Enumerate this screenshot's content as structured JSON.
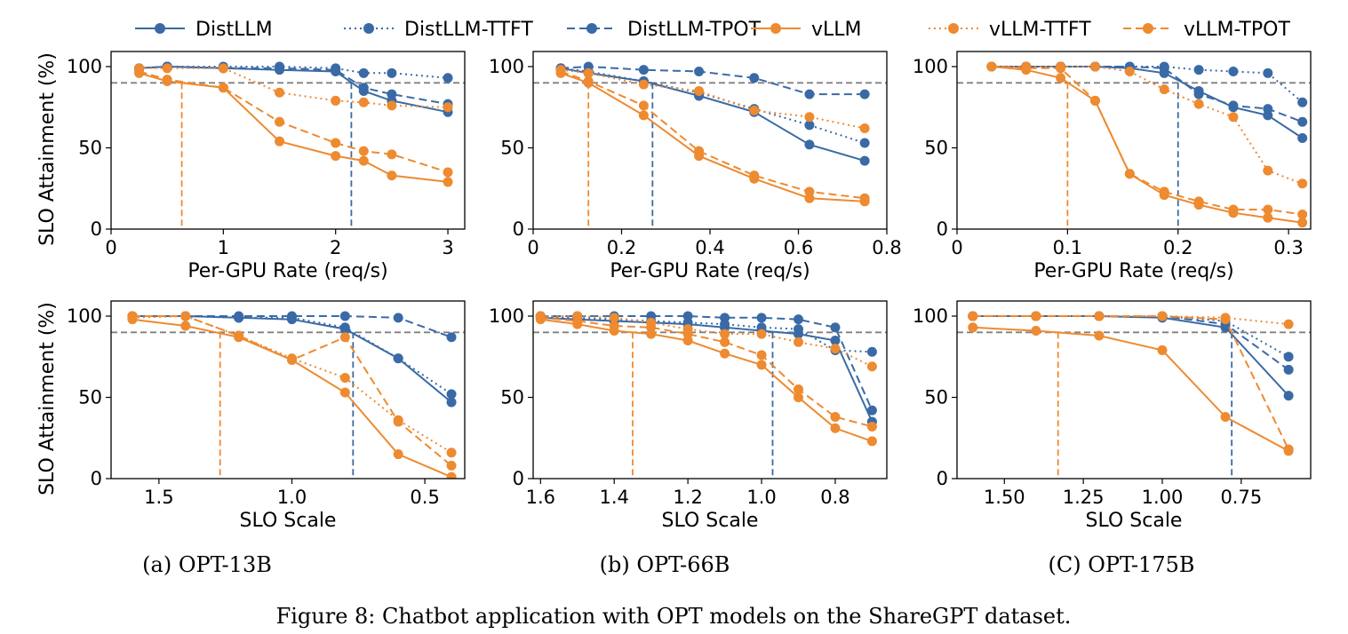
{
  "caption": "Figure 8: Chatbot application with OPT models on the ShareGPT dataset.",
  "colors": {
    "distllm": "#3a6aa6",
    "vllm": "#ee8a30",
    "threshold": "#808080"
  },
  "legend": [
    "DistLLM",
    "DistLLM-TTFT",
    "DistLLM-TPOT",
    "vLLM",
    "vLLM-TTFT",
    "vLLM-TPOT"
  ],
  "shared_ylabel": "SLO Attainment (%)",
  "chart_data": [
    {
      "type": "line",
      "row": 0,
      "col": 0,
      "xlabel": "Per-GPU Rate (req/s)",
      "ylabel": "SLO Attainment (%)",
      "xlim": [
        0,
        3.15
      ],
      "ylim": [
        0,
        100
      ],
      "xreverse": false,
      "xticks": [
        0,
        1,
        2,
        3
      ],
      "xticklabels": [
        "0",
        "1",
        "2",
        "3"
      ],
      "yticks": [
        0,
        50,
        100
      ],
      "yticklabels": [
        "0",
        "50",
        "100"
      ],
      "threshold_y": 90,
      "x": [
        0.25,
        0.5,
        1.0,
        1.5,
        2.0,
        2.25,
        2.5,
        3.0
      ],
      "series": [
        {
          "name": "DistLLM",
          "values": [
            99,
            100,
            99,
            98,
            97,
            85,
            79,
            72
          ]
        },
        {
          "name": "DistLLM-TTFT",
          "values": [
            99,
            100,
            100,
            100,
            99,
            96,
            96,
            93
          ]
        },
        {
          "name": "DistLLM-TPOT",
          "values": [
            99,
            100,
            99,
            99,
            98,
            87,
            83,
            77
          ]
        },
        {
          "name": "vLLM",
          "values": [
            96,
            91,
            87,
            54,
            45,
            42,
            33,
            29
          ]
        },
        {
          "name": "vLLM-TTFT",
          "values": [
            99,
            99,
            99,
            84,
            79,
            78,
            76,
            75
          ]
        },
        {
          "name": "vLLM-TPOT",
          "values": [
            97,
            92,
            87,
            66,
            53,
            48,
            46,
            35
          ]
        }
      ],
      "vlines": [
        {
          "x": 0.63,
          "color": "vllm"
        },
        {
          "x": 2.14,
          "color": "distllm"
        }
      ]
    },
    {
      "type": "line",
      "row": 0,
      "col": 1,
      "xlabel": "Per-GPU Rate (req/s)",
      "ylabel": "",
      "xlim": [
        0,
        0.8
      ],
      "ylim": [
        0,
        100
      ],
      "xreverse": false,
      "xticks": [
        0,
        0.2,
        0.4,
        0.6,
        0.8
      ],
      "xticklabels": [
        "0",
        "0.2",
        "0.4",
        "0.6",
        "0.8"
      ],
      "yticks": [
        0,
        50,
        100
      ],
      "yticklabels": [
        "0",
        "50",
        "100"
      ],
      "threshold_y": 90,
      "x": [
        0.0625,
        0.125,
        0.25,
        0.375,
        0.5,
        0.625,
        0.75
      ],
      "series": [
        {
          "name": "DistLLM",
          "values": [
            99,
            96,
            91,
            82,
            72,
            52,
            42
          ]
        },
        {
          "name": "DistLLM-TTFT",
          "values": [
            99,
            97,
            91,
            84,
            74,
            64,
            53
          ]
        },
        {
          "name": "DistLLM-TPOT",
          "values": [
            99,
            100,
            98,
            97,
            93,
            83,
            83
          ]
        },
        {
          "name": "vLLM",
          "values": [
            96,
            90,
            70,
            45,
            31,
            19,
            17
          ]
        },
        {
          "name": "vLLM-TTFT",
          "values": [
            98,
            96,
            89,
            85,
            73,
            69,
            62
          ]
        },
        {
          "name": "vLLM-TPOT",
          "values": [
            97,
            91,
            76,
            48,
            33,
            23,
            19
          ]
        }
      ],
      "vlines": [
        {
          "x": 0.125,
          "color": "vllm"
        },
        {
          "x": 0.27,
          "color": "distllm"
        }
      ]
    },
    {
      "type": "line",
      "row": 0,
      "col": 2,
      "xlabel": "Per-GPU Rate (req/s)",
      "ylabel": "",
      "xlim": [
        0,
        0.32
      ],
      "ylim": [
        0,
        100
      ],
      "xreverse": false,
      "xticks": [
        0,
        0.1,
        0.2,
        0.3
      ],
      "xticklabels": [
        "0",
        "0.1",
        "0.2",
        "0.3"
      ],
      "yticks": [
        0,
        50,
        100
      ],
      "yticklabels": [
        "0",
        "50",
        "100"
      ],
      "threshold_y": 90,
      "x": [
        0.03125,
        0.0625,
        0.09375,
        0.125,
        0.15625,
        0.1875,
        0.21875,
        0.25,
        0.28125,
        0.3125
      ],
      "series": [
        {
          "name": "DistLLM",
          "values": [
            100,
            100,
            100,
            100,
            99,
            96,
            85,
            75,
            70,
            56
          ]
        },
        {
          "name": "DistLLM-TTFT",
          "values": [
            100,
            100,
            100,
            100,
            100,
            100,
            98,
            97,
            96,
            78
          ]
        },
        {
          "name": "DistLLM-TPOT",
          "values": [
            100,
            100,
            100,
            100,
            100,
            99,
            83,
            76,
            74,
            66
          ]
        },
        {
          "name": "vLLM",
          "values": [
            100,
            98,
            93,
            79,
            34,
            21,
            15,
            10,
            7,
            4
          ]
        },
        {
          "name": "vLLM-TTFT",
          "values": [
            100,
            100,
            100,
            100,
            97,
            86,
            77,
            69,
            36,
            28
          ]
        },
        {
          "name": "vLLM-TPOT",
          "values": [
            100,
            99,
            99,
            79,
            34,
            23,
            17,
            12,
            12,
            9
          ]
        }
      ],
      "vlines": [
        {
          "x": 0.1,
          "color": "vllm"
        },
        {
          "x": 0.2,
          "color": "distllm"
        }
      ]
    },
    {
      "type": "line",
      "row": 1,
      "col": 0,
      "xlabel": "SLO Scale",
      "ylabel": "",
      "xlim": [
        1.68,
        0.35
      ],
      "ylim": [
        0,
        100
      ],
      "xreverse": true,
      "xticks": [
        1.5,
        1.0,
        0.5
      ],
      "xticklabels": [
        "1.5",
        "1.0",
        "0.5"
      ],
      "yticks": [
        0,
        50,
        100
      ],
      "yticklabels": [
        "0",
        "50",
        "100"
      ],
      "threshold_y": 90,
      "x": [
        1.6,
        1.4,
        1.2,
        1.0,
        0.8,
        0.6,
        0.4
      ],
      "series": [
        {
          "name": "DistLLM",
          "values": [
            100,
            100,
            99,
            98,
            92,
            74,
            47
          ]
        },
        {
          "name": "DistLLM-TTFT",
          "values": [
            100,
            100,
            99,
            99,
            93,
            74,
            52
          ]
        },
        {
          "name": "DistLLM-TPOT",
          "values": [
            100,
            100,
            100,
            100,
            100,
            99,
            87
          ]
        },
        {
          "name": "vLLM",
          "values": [
            98,
            94,
            87,
            73,
            53,
            15,
            1
          ]
        },
        {
          "name": "vLLM-TTFT",
          "values": [
            99,
            100,
            88,
            74,
            62,
            36,
            16
          ]
        },
        {
          "name": "vLLM-TPOT",
          "values": [
            100,
            100,
            88,
            73,
            87,
            35,
            8
          ]
        }
      ],
      "vlines": [
        {
          "x": 1.27,
          "color": "vllm"
        },
        {
          "x": 0.77,
          "color": "distllm"
        }
      ]
    },
    {
      "type": "line",
      "row": 1,
      "col": 1,
      "xlabel": "SLO Scale",
      "ylabel": "",
      "xlim": [
        1.62,
        0.66
      ],
      "ylim": [
        0,
        100
      ],
      "xreverse": true,
      "xticks": [
        1.6,
        1.4,
        1.2,
        1.0,
        0.8
      ],
      "xticklabels": [
        "1.6",
        "1.4",
        "1.2",
        "1.0",
        "0.8"
      ],
      "yticks": [
        0,
        50,
        100
      ],
      "yticklabels": [
        "0",
        "50",
        "100"
      ],
      "threshold_y": 90,
      "x": [
        1.6,
        1.5,
        1.4,
        1.3,
        1.2,
        1.1,
        1.0,
        0.9,
        0.8,
        0.7
      ],
      "series": [
        {
          "name": "DistLLM",
          "values": [
            99,
            98,
            97,
            96,
            95,
            93,
            91,
            89,
            85,
            35
          ]
        },
        {
          "name": "DistLLM-TTFT",
          "values": [
            100,
            99,
            98,
            97,
            96,
            95,
            93,
            92,
            79,
            78
          ]
        },
        {
          "name": "DistLLM-TPOT",
          "values": [
            100,
            100,
            100,
            100,
            100,
            99,
            99,
            98,
            93,
            42
          ]
        },
        {
          "name": "vLLM",
          "values": [
            98,
            95,
            91,
            89,
            85,
            77,
            70,
            50,
            31,
            23
          ]
        },
        {
          "name": "vLLM-TTFT",
          "values": [
            100,
            100,
            99,
            96,
            92,
            89,
            89,
            84,
            80,
            69
          ]
        },
        {
          "name": "vLLM-TPOT",
          "values": [
            99,
            97,
            94,
            93,
            89,
            84,
            76,
            55,
            38,
            32
          ]
        }
      ],
      "vlines": [
        {
          "x": 1.35,
          "color": "vllm"
        },
        {
          "x": 0.97,
          "color": "distllm"
        }
      ]
    },
    {
      "type": "line",
      "row": 1,
      "col": 2,
      "xlabel": "SLO Scale",
      "ylabel": "",
      "xlim": [
        1.65,
        0.53
      ],
      "ylim": [
        0,
        100
      ],
      "xreverse": true,
      "xticks": [
        1.5,
        1.25,
        1.0,
        0.75
      ],
      "xticklabels": [
        "1.50",
        "1.25",
        "1.00",
        "0.75"
      ],
      "yticks": [
        0,
        50,
        100
      ],
      "yticklabels": [
        "0",
        "50",
        "100"
      ],
      "threshold_y": 90,
      "x": [
        1.6,
        1.4,
        1.2,
        1.0,
        0.8,
        0.6
      ],
      "series": [
        {
          "name": "DistLLM",
          "values": [
            100,
            100,
            100,
            99,
            93,
            51
          ]
        },
        {
          "name": "DistLLM-TTFT",
          "values": [
            100,
            100,
            100,
            100,
            97,
            75
          ]
        },
        {
          "name": "DistLLM-TPOT",
          "values": [
            100,
            100,
            100,
            100,
            95,
            67
          ]
        },
        {
          "name": "vLLM",
          "values": [
            93,
            91,
            88,
            79,
            38,
            17
          ]
        },
        {
          "name": "vLLM-TTFT",
          "values": [
            100,
            100,
            100,
            100,
            99,
            95
          ]
        },
        {
          "name": "vLLM-TPOT",
          "values": [
            100,
            100,
            100,
            100,
            98,
            18
          ]
        }
      ],
      "vlines": [
        {
          "x": 1.33,
          "color": "vllm"
        },
        {
          "x": 0.78,
          "color": "distllm"
        }
      ]
    }
  ],
  "subcaptions": [
    "(a) OPT-13B",
    "(b) OPT-66B",
    "(C) OPT-175B"
  ]
}
